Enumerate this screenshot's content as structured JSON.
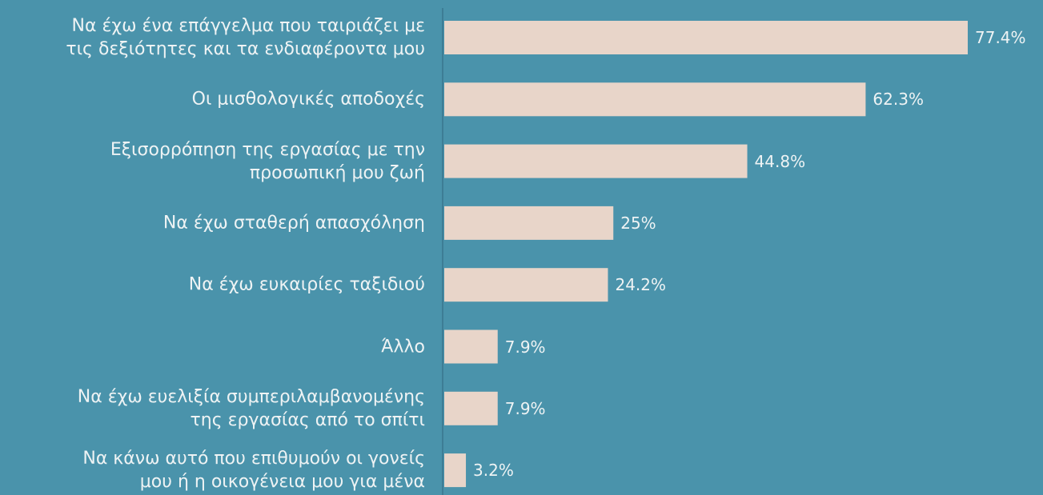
{
  "chart_data": {
    "type": "bar",
    "orientation": "horizontal",
    "categories": [
      "Να έχω ένα επάγγελμα που ταιριάζει με\nτις δεξιότητες και τα ενδιαφέροντα μου",
      "Οι μισθολογικές αποδοχές",
      "Εξισορρόπηση της εργασίας με την\nπροσωπική μου ζωή",
      "Να έχω σταθερή απασχόληση",
      "Να έχω ευκαιρίες ταξιδιού",
      "Άλλο",
      "Να έχω ευελιξία συμπεριλαμβανομένης\nτης εργασίας από το σπίτι",
      "Να κάνω αυτό που επιθυμούν οι γονείς\nμου ή η οικογένεια μου για μένα"
    ],
    "values": [
      77.4,
      62.3,
      44.8,
      25,
      24.2,
      7.9,
      7.9,
      3.2
    ],
    "value_labels": [
      "77.4%",
      "62.3%",
      "44.8%",
      "25%",
      "24.2%",
      "7.9%",
      "7.9%",
      "3.2%"
    ],
    "color": "#e8d5c9"
  }
}
